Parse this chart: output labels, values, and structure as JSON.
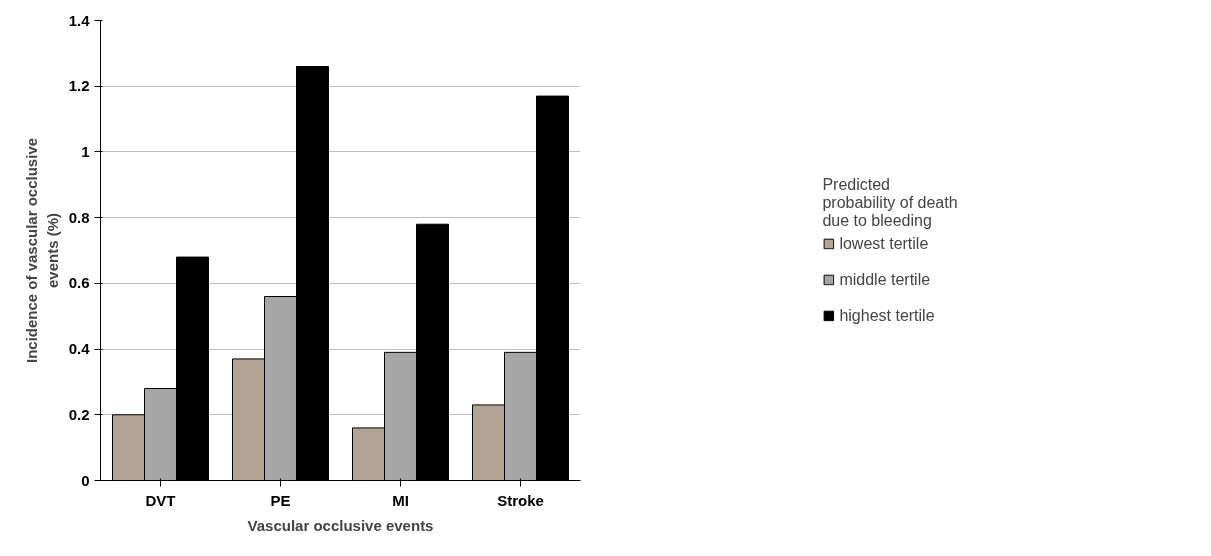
{
  "chart_data": {
    "type": "bar",
    "xlabel": "Vascular occlusive events",
    "ylabel": "Incidence of vascular occlusive events (%)",
    "legend_title": "Predicted probability of death due to bleeding",
    "categories": [
      "DVT",
      "PE",
      "MI",
      "Stroke"
    ],
    "series": [
      {
        "name": "lowest tertile",
        "color": "#b3a595",
        "values": [
          0.2,
          0.37,
          0.16,
          0.23
        ]
      },
      {
        "name": "middle tertile",
        "color": "#a6a6a6",
        "values": [
          0.28,
          0.56,
          0.39,
          0.39
        ]
      },
      {
        "name": "highest tertile",
        "color": "#000000",
        "values": [
          0.68,
          1.26,
          0.78,
          1.17
        ]
      }
    ],
    "ylim": [
      0,
      1.4
    ],
    "yticks": [
      0,
      0.2,
      0.4,
      0.6,
      0.8,
      {
        "value": 1,
        "label": "1"
      },
      1.2,
      1.4
    ],
    "grid": "y",
    "legend": "right"
  }
}
